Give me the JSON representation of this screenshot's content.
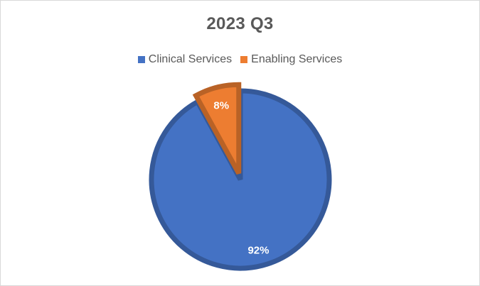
{
  "chart_data": {
    "type": "pie",
    "title": "2023 Q3",
    "categories": [
      "Clinical Services",
      "Enabling Services"
    ],
    "values": [
      92,
      8
    ],
    "data_labels": [
      "92%",
      "8%"
    ],
    "colors": [
      "#4472c4",
      "#ed7d31"
    ],
    "legend_position": "top"
  }
}
